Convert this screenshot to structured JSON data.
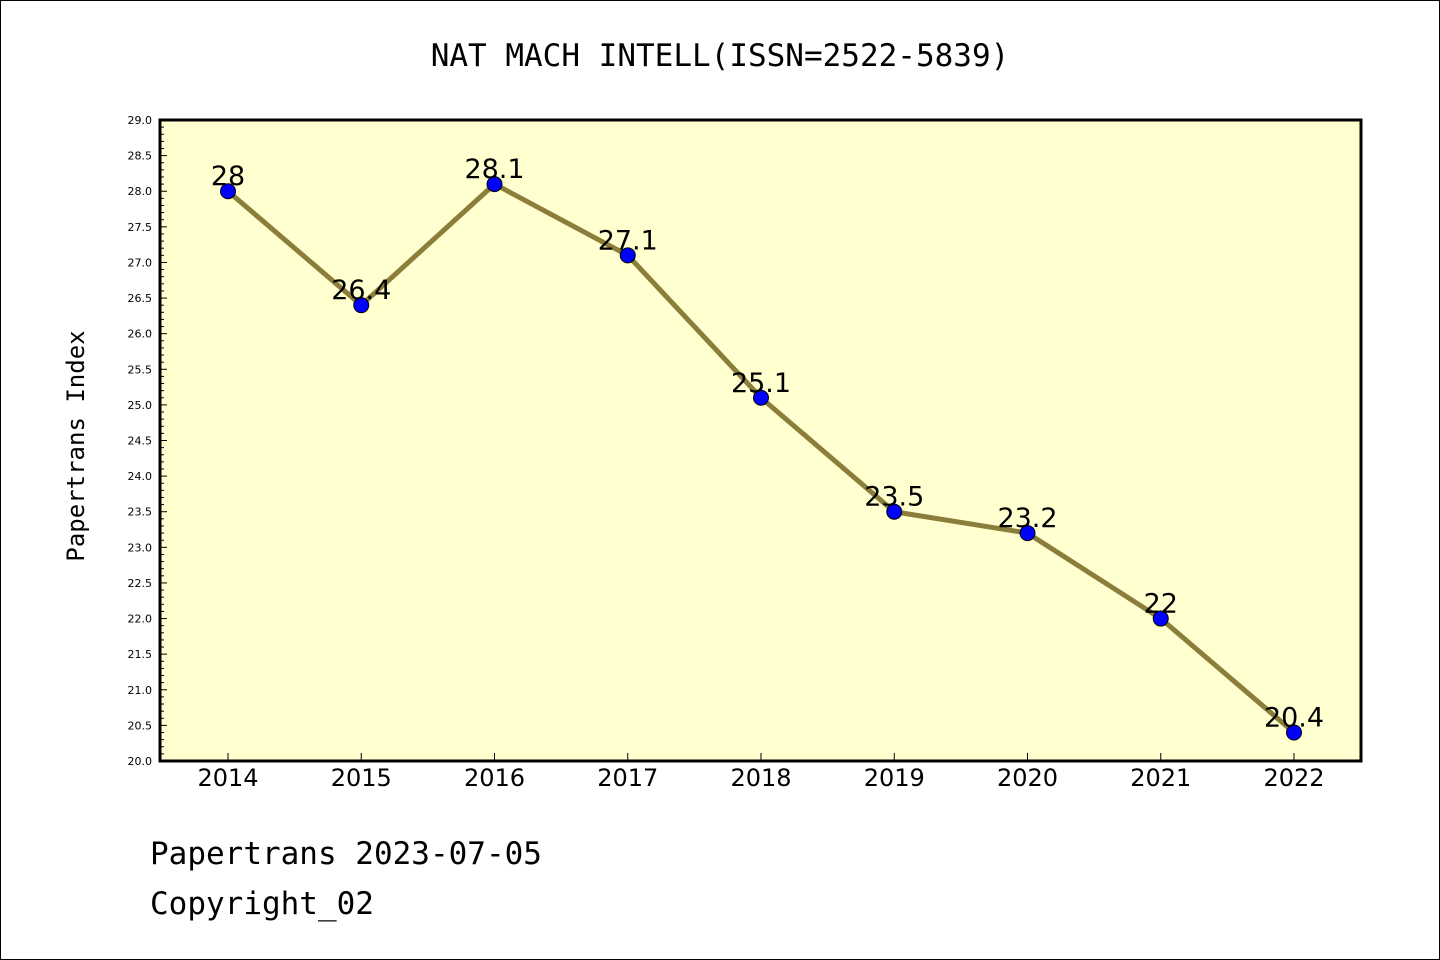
{
  "chart_data": {
    "type": "line",
    "title": "NAT MACH INTELL(ISSN=2522-5839)",
    "xlabel": "",
    "ylabel": "Papertrans Index",
    "categories": [
      "2014",
      "2015",
      "2016",
      "2017",
      "2018",
      "2019",
      "2020",
      "2021",
      "2022"
    ],
    "values": [
      28,
      26.4,
      28.1,
      27.1,
      25.1,
      23.5,
      23.2,
      22,
      20.4
    ],
    "data_labels": [
      "28",
      "26.4",
      "28.1",
      "27.1",
      "25.1",
      "23.5",
      "23.2",
      "22",
      "20.4"
    ],
    "ylim": [
      20.0,
      29.0
    ],
    "yticks": [
      "20.0",
      "20.5",
      "21.0",
      "21.5",
      "22.0",
      "22.5",
      "23.0",
      "23.5",
      "24.0",
      "24.5",
      "25.0",
      "25.5",
      "26.0",
      "26.5",
      "27.0",
      "27.5",
      "28.0",
      "28.5",
      "29.0"
    ],
    "grid": false,
    "colors": {
      "plot_background": "#ffffd0",
      "line": "#8b7d3a",
      "marker": "#0000ff"
    }
  },
  "footer": {
    "line1": "Papertrans 2023-07-05",
    "line2": "Copyright_02"
  }
}
